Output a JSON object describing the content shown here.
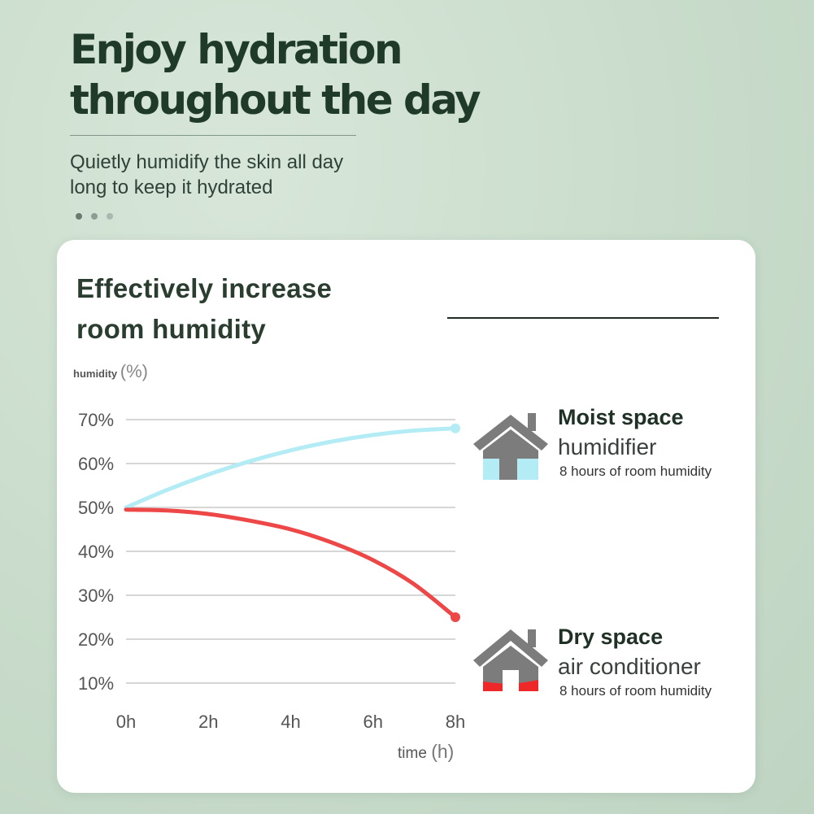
{
  "header": {
    "title_lines": [
      "Enjoy hydration",
      "throughout the day"
    ],
    "subtitle_lines": [
      "Quietly humidify the skin all day",
      "long to keep it hydrated"
    ]
  },
  "pager": {
    "dots": 3,
    "active_index": 0
  },
  "colors": {
    "moist": "#b4ecf6",
    "dry": "#ee4747",
    "house_gray": "#7c7c7c",
    "grid": "#c9c9c9",
    "axis_text": "#555555"
  },
  "chart_data": {
    "type": "line",
    "title": "Effectively increase room humidity",
    "title_lines": [
      "Effectively increase",
      "room humidity"
    ],
    "ylabel_word": "humidity",
    "ylabel_unit": "(%)",
    "xlabel_word": "time",
    "xlabel_unit": "(h)",
    "x_ticks": [
      "0h",
      "2h",
      "4h",
      "6h",
      "8h"
    ],
    "y_ticks": [
      "70%",
      "60%",
      "50%",
      "40%",
      "30%",
      "20%",
      "10%"
    ],
    "x_range": [
      0,
      8
    ],
    "y_range": [
      10,
      70
    ],
    "grid": true,
    "series": [
      {
        "key": "moist",
        "x": [
          0,
          1,
          2,
          3,
          4,
          5,
          6,
          7,
          8
        ],
        "y": [
          50,
          54,
          57.5,
          60.5,
          63,
          65,
          66.5,
          67.5,
          68
        ]
      },
      {
        "key": "dry",
        "x": [
          0,
          1,
          2,
          3,
          4,
          5,
          6,
          7,
          8
        ],
        "y": [
          49.5,
          49.3,
          48.5,
          47,
          45,
          42,
          38,
          32.5,
          25
        ]
      }
    ]
  },
  "legend": {
    "moist": {
      "name": "Moist space",
      "device": "humidifier",
      "note": "8 hours of room humidity",
      "icon": "house-icon-blue-fill"
    },
    "dry": {
      "name": "Dry space",
      "device": "air conditioner",
      "note": "8 hours of room humidity",
      "icon": "house-icon-red-fill"
    }
  }
}
